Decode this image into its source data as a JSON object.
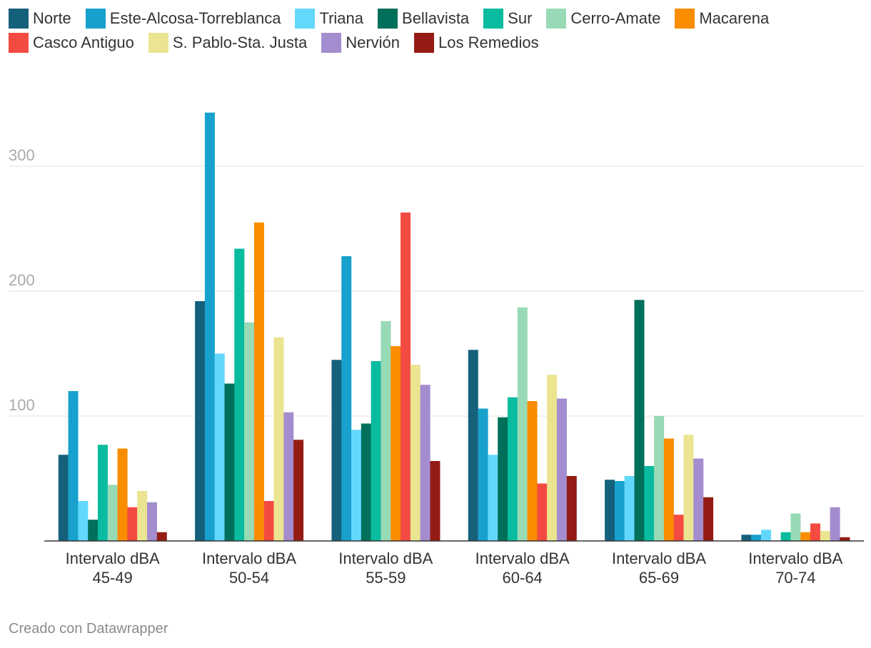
{
  "chart_data": {
    "type": "bar",
    "title": "",
    "xlabel": "",
    "ylabel": "",
    "ylim": [
      0,
      345
    ],
    "yticks": [
      100,
      200,
      300
    ],
    "grid": true,
    "legend_position": "top",
    "categories": [
      [
        "Intervalo dBA",
        "45-49"
      ],
      [
        "Intervalo dBA",
        "50-54"
      ],
      [
        "Intervalo dBA",
        "55-59"
      ],
      [
        "Intervalo dBA",
        "60-64"
      ],
      [
        "Intervalo dBA",
        "65-69"
      ],
      [
        "Intervalo dBA",
        "70-74"
      ]
    ],
    "series": [
      {
        "name": "Norte",
        "color": "#15607a",
        "values": [
          69,
          192,
          145,
          153,
          49,
          5
        ]
      },
      {
        "name": "Este-Alcosa-Torreblanca",
        "color": "#18a1cd",
        "values": [
          120,
          343,
          228,
          106,
          48,
          5
        ]
      },
      {
        "name": "Triana",
        "color": "#63d8fd",
        "values": [
          32,
          150,
          89,
          69,
          52,
          9
        ]
      },
      {
        "name": "Bellavista",
        "color": "#00705a",
        "values": [
          17,
          126,
          94,
          99,
          193,
          0
        ]
      },
      {
        "name": "Sur",
        "color": "#09bb9f",
        "values": [
          77,
          234,
          144,
          115,
          60,
          7
        ]
      },
      {
        "name": "Cerro-Amate",
        "color": "#98dab5",
        "values": [
          45,
          175,
          176,
          187,
          100,
          22
        ]
      },
      {
        "name": "Macarena",
        "color": "#fa8c00",
        "values": [
          74,
          255,
          156,
          112,
          82,
          7
        ]
      },
      {
        "name": "Casco Antiguo",
        "color": "#f34b41",
        "values": [
          27,
          32,
          263,
          46,
          21,
          14
        ]
      },
      {
        "name": "S. Pablo-Sta. Justa",
        "color": "#ebe490",
        "values": [
          40,
          163,
          141,
          133,
          85,
          8
        ]
      },
      {
        "name": "Nervión",
        "color": "#a48dcf",
        "values": [
          31,
          103,
          125,
          114,
          66,
          27
        ]
      },
      {
        "name": "Los Remedios",
        "color": "#951c14",
        "values": [
          7,
          81,
          64,
          52,
          35,
          3
        ]
      }
    ]
  },
  "footer": {
    "credit": "Creado con Datawrapper"
  }
}
